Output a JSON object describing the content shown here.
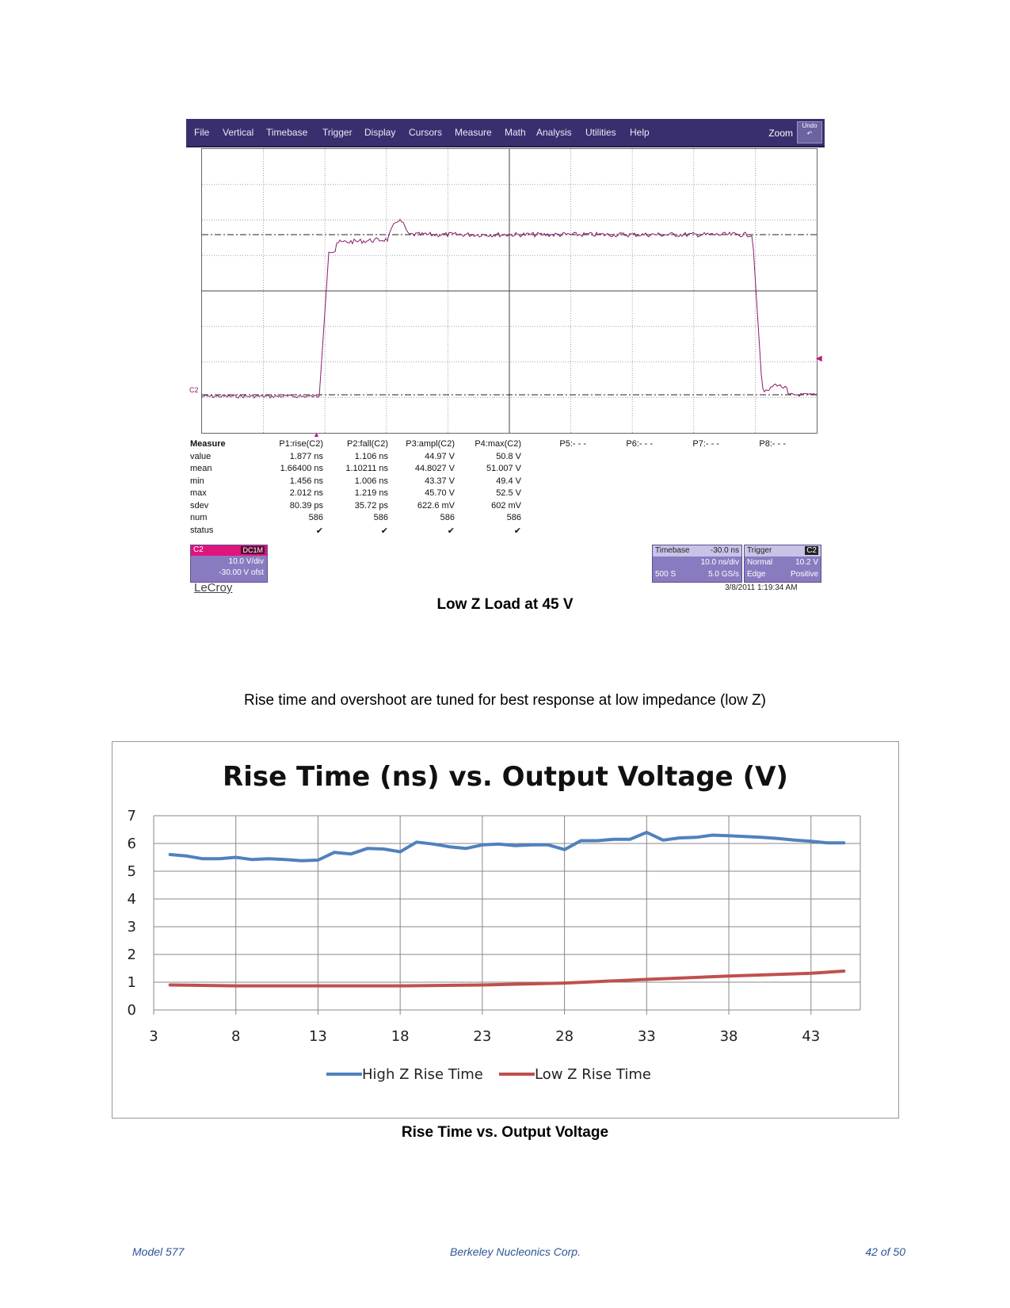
{
  "scope": {
    "menu": [
      "File",
      "Vertical",
      "Timebase",
      "Trigger",
      "Display",
      "Cursors",
      "Measure",
      "Math",
      "Analysis",
      "Utilities",
      "Help"
    ],
    "zoom_label": "Zoom",
    "undo_label": "Undo",
    "channel_marker": "C2",
    "trace_color": "#8b1a6b",
    "measure": {
      "header": [
        "Measure",
        "P1:rise(C2)",
        "P2:fall(C2)",
        "P3:ampl(C2)",
        "P4:max(C2)",
        "P5:- - -",
        "P6:- - -",
        "P7:- - -",
        "P8:- - -"
      ],
      "rows": [
        {
          "label": "value",
          "cells": [
            "1.877 ns",
            "1.106 ns",
            "44.97 V",
            "50.8 V"
          ]
        },
        {
          "label": "mean",
          "cells": [
            "1.66400 ns",
            "1.10211 ns",
            "44.8027 V",
            "51.007 V"
          ]
        },
        {
          "label": "min",
          "cells": [
            "1.456 ns",
            "1.006 ns",
            "43.37 V",
            "49.4 V"
          ]
        },
        {
          "label": "max",
          "cells": [
            "2.012 ns",
            "1.219 ns",
            "45.70 V",
            "52.5 V"
          ]
        },
        {
          "label": "sdev",
          "cells": [
            "80.39 ps",
            "35.72 ps",
            "622.6 mV",
            "602 mV"
          ]
        },
        {
          "label": "num",
          "cells": [
            "586",
            "586",
            "586",
            "586"
          ]
        },
        {
          "label": "status",
          "cells": [
            "✔",
            "✔",
            "✔",
            "✔"
          ]
        }
      ]
    },
    "channel_box": {
      "name": "C2",
      "coupling": "DC1M",
      "vdiv": "10.0 V/div",
      "offset": "-30.00 V ofst"
    },
    "brand": "LeCroy",
    "timebase_box": {
      "title": "Timebase",
      "delay": "-30.0 ns",
      "tdiv": "10.0 ns/div",
      "samples": "500 S",
      "rate": "5.0 GS/s"
    },
    "trigger_box": {
      "title": "Trigger",
      "source": "C2",
      "mode": "Normal",
      "level": "10.2 V",
      "type": "Edge",
      "slope": "Positive"
    },
    "timestamp": "3/8/2011 1:19:34 AM"
  },
  "caption1": "Low Z Load at 45 V",
  "body_text": "Rise time and overshoot are tuned for best response at low impedance (low Z)",
  "chart_data": {
    "type": "line",
    "title": "Rise Time (ns) vs. Output Voltage (V)",
    "xlabel": "",
    "ylabel": "",
    "xlim": [
      3,
      46
    ],
    "ylim": [
      0,
      7
    ],
    "x_ticks": [
      3,
      8,
      13,
      18,
      23,
      28,
      33,
      38,
      43
    ],
    "y_ticks": [
      0,
      1,
      2,
      3,
      4,
      5,
      6,
      7
    ],
    "grid": true,
    "legend": "bottom",
    "series": [
      {
        "name": "High Z Rise Time",
        "color": "#4f81bd",
        "x": [
          4,
          5,
          6,
          7,
          8,
          9,
          10,
          11,
          12,
          13,
          14,
          15,
          16,
          17,
          18,
          19,
          20,
          21,
          22,
          23,
          24,
          25,
          26,
          27,
          28,
          29,
          30,
          31,
          32,
          33,
          34,
          35,
          36,
          37,
          38,
          39,
          40,
          41,
          42,
          43,
          44,
          45
        ],
        "y": [
          5.6,
          5.55,
          5.45,
          5.45,
          5.5,
          5.42,
          5.45,
          5.42,
          5.38,
          5.4,
          5.68,
          5.62,
          5.82,
          5.8,
          5.7,
          6.05,
          5.98,
          5.88,
          5.82,
          5.95,
          5.98,
          5.92,
          5.95,
          5.95,
          5.78,
          6.1,
          6.1,
          6.15,
          6.15,
          6.4,
          6.12,
          6.2,
          6.22,
          6.3,
          6.28,
          6.25,
          6.22,
          6.18,
          6.12,
          6.08,
          6.02,
          6.02
        ]
      },
      {
        "name": "Low Z Rise Time",
        "color": "#c0504d",
        "x": [
          4,
          8,
          13,
          18,
          23,
          28,
          33,
          38,
          43,
          45
        ],
        "y": [
          0.9,
          0.87,
          0.87,
          0.87,
          0.9,
          0.97,
          1.1,
          1.22,
          1.32,
          1.4
        ]
      }
    ]
  },
  "caption2": "Rise Time vs. Output Voltage",
  "footer": {
    "left": "Model 577",
    "center": "Berkeley Nucleonics Corp.",
    "right": "42 of 50"
  }
}
